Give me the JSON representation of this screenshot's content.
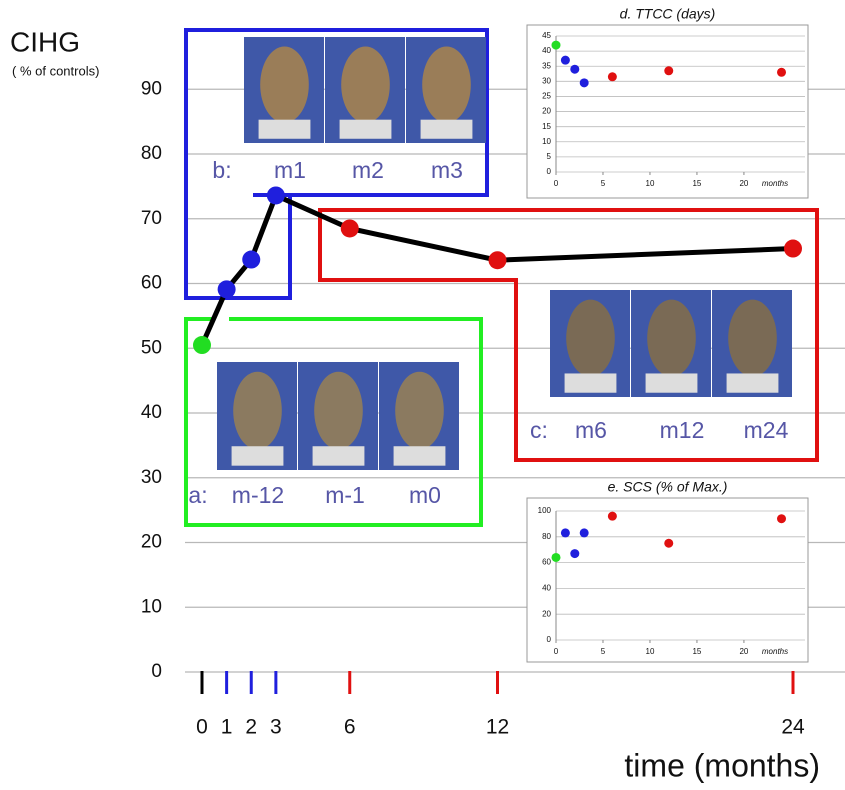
{
  "chart_data": [
    {
      "type": "line",
      "title": "CIHG",
      "subtitle": "( % of controls)",
      "x_label": "time (months)",
      "x": [
        0,
        1,
        2,
        3,
        6,
        12,
        24
      ],
      "xlim": [
        0,
        24
      ],
      "xticks": [
        0,
        1,
        2,
        3,
        6,
        12,
        24
      ],
      "xtick_colors": [
        "#000000",
        "#1f1fdd",
        "#1f1fdd",
        "#1f1fdd",
        "#e01010",
        "#e01010",
        "#e01010"
      ],
      "values": [
        50.5,
        59.1,
        63.7,
        73.6,
        68.5,
        63.6,
        65.4
      ],
      "color": "#000000",
      "point_colors": [
        "#22dd22",
        "#1f1fdd",
        "#1f1fdd",
        "#1f1fdd",
        "#e01010",
        "#e01010",
        "#e01010"
      ],
      "ylim": [
        0,
        99
      ],
      "yticks": [
        0,
        10,
        20,
        30,
        40,
        50,
        60,
        70,
        80,
        90
      ],
      "grid": true,
      "panels": [
        {
          "label": "a:",
          "photos": [
            "m-12",
            "m-1",
            "m0"
          ],
          "color": "#22ee22"
        },
        {
          "label": "b:",
          "photos": [
            "m1",
            "m2",
            "m3"
          ],
          "color": "#1f1fdd"
        },
        {
          "label": "c:",
          "photos": [
            "m6",
            "m12",
            "m24"
          ],
          "color": "#e01010"
        }
      ]
    },
    {
      "type": "scatter",
      "title": "d. TTCC (days)",
      "x_label": "months",
      "x": [
        0,
        1,
        2,
        3,
        6,
        12,
        24
      ],
      "values": [
        42,
        37,
        34,
        29.5,
        31.5,
        33.5,
        33
      ],
      "point_colors": [
        "#22dd22",
        "#1f1fdd",
        "#1f1fdd",
        "#1f1fdd",
        "#e01010",
        "#e01010",
        "#e01010"
      ],
      "xlim": [
        0,
        26.5
      ],
      "xticks": [
        0,
        5,
        10,
        15,
        20
      ],
      "ylim": [
        0,
        45
      ],
      "yticks": [
        0,
        5,
        10,
        15,
        20,
        25,
        30,
        35,
        40,
        45
      ],
      "grid": true
    },
    {
      "type": "scatter",
      "title": "e. SCS (% of Max.)",
      "x_label": "months",
      "x": [
        0,
        1,
        2,
        3,
        6,
        12,
        24
      ],
      "values": [
        64,
        83,
        67,
        83,
        96,
        75,
        94
      ],
      "point_colors": [
        "#22dd22",
        "#1f1fdd",
        "#1f1fdd",
        "#1f1fdd",
        "#e01010",
        "#e01010",
        "#e01010"
      ],
      "xlim": [
        0,
        26.5
      ],
      "xticks": [
        0,
        5,
        10,
        15,
        20
      ],
      "ylim": [
        0,
        100
      ],
      "yticks": [
        0,
        20,
        40,
        60,
        80,
        100
      ],
      "grid": true
    }
  ]
}
